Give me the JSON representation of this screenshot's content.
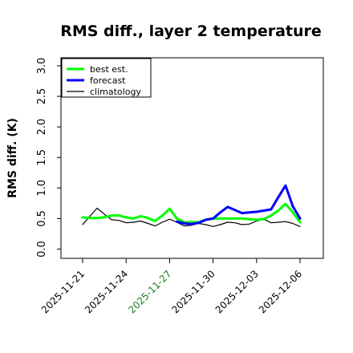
{
  "chart_data": {
    "type": "line",
    "title": "RMS diff., layer 2 temperature",
    "ylabel": "RMS diff. (K)",
    "xlabel": "",
    "ylim": [
      0,
      3.0
    ],
    "yticks": [
      0.0,
      0.5,
      1.0,
      1.5,
      2.0,
      2.5,
      3.0
    ],
    "ytick_labels": [
      "0.0",
      "0.5",
      "1.0",
      "1.5",
      "2.0",
      "2.5",
      "3.0"
    ],
    "x": [
      "2025-11-21T00",
      "2025-11-21T12",
      "2025-11-22T00",
      "2025-11-22T12",
      "2025-11-23T00",
      "2025-11-23T12",
      "2025-11-24T00",
      "2025-11-24T12",
      "2025-11-25T00",
      "2025-11-25T12",
      "2025-11-26T00",
      "2025-11-26T12",
      "2025-11-27T00",
      "2025-11-27T12",
      "2025-11-28T00",
      "2025-11-28T12",
      "2025-11-29T00",
      "2025-11-29T12",
      "2025-11-30T00",
      "2025-11-30T12",
      "2025-12-01T00",
      "2025-12-01T12",
      "2025-12-02T00",
      "2025-12-02T12",
      "2025-12-03T00",
      "2025-12-03T12",
      "2025-12-04T00",
      "2025-12-04T12",
      "2025-12-05T00",
      "2025-12-05T12",
      "2025-12-06T00"
    ],
    "xticks": [
      "2025-11-21T00",
      "2025-11-24T00",
      "2025-11-27T00",
      "2025-11-30T00",
      "2025-12-03T00",
      "2025-12-06T00"
    ],
    "xtick_labels": [
      "2025-11-21",
      "2025-11-24",
      "2025-11-27",
      "2025-11-30",
      "2025-12-03",
      "2025-12-06"
    ],
    "highlight_tick_index": 2,
    "series": [
      {
        "name": "best est.",
        "color": "#00ff00",
        "linewidth": 3,
        "values": [
          0.52,
          0.51,
          0.51,
          0.52,
          0.55,
          0.55,
          0.52,
          0.5,
          0.54,
          0.51,
          0.46,
          0.55,
          0.66,
          0.5,
          0.44,
          0.44,
          0.44,
          0.48,
          0.5,
          0.5,
          0.5,
          0.5,
          0.5,
          0.49,
          0.48,
          0.49,
          0.55,
          0.63,
          0.74,
          0.6,
          0.44
        ]
      },
      {
        "name": "forecast",
        "color": "#0000ff",
        "linewidth": 3,
        "values": [
          null,
          null,
          null,
          null,
          null,
          null,
          null,
          null,
          null,
          null,
          null,
          null,
          null,
          0.45,
          0.42,
          0.41,
          0.43,
          0.48,
          0.5,
          0.6,
          0.69,
          0.64,
          0.59,
          0.6,
          0.61,
          0.63,
          0.65,
          0.85,
          1.04,
          0.7,
          0.5
        ]
      },
      {
        "name": "climatology",
        "color": "#000000",
        "linewidth": 1.2,
        "values": [
          0.4,
          0.54,
          0.67,
          0.57,
          0.48,
          0.47,
          0.43,
          0.44,
          0.46,
          0.42,
          0.38,
          0.44,
          0.49,
          0.44,
          0.38,
          0.39,
          0.42,
          0.4,
          0.37,
          0.4,
          0.44,
          0.43,
          0.4,
          0.41,
          0.46,
          0.49,
          0.43,
          0.44,
          0.45,
          0.42,
          0.37
        ]
      }
    ],
    "legend": {
      "location": "top-left",
      "entries": [
        "best est.",
        "forecast",
        "climatology"
      ]
    },
    "grid": false
  }
}
